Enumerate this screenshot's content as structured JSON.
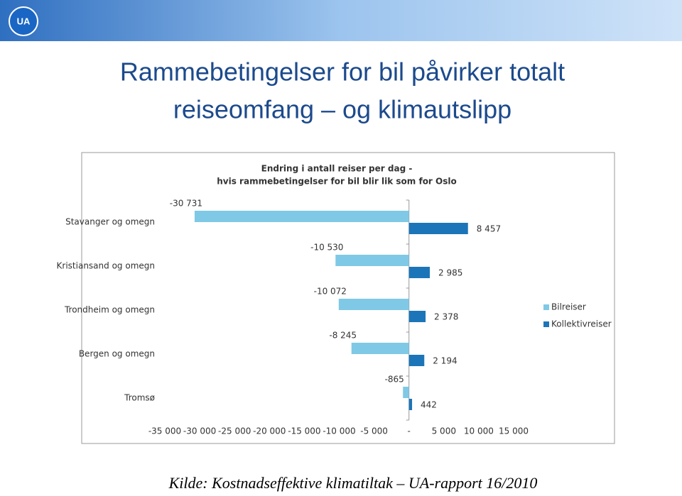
{
  "slide": {
    "logo": "UA",
    "title_lines": [
      "Rammebetingelser for bil påvirker totalt",
      "reiseomfang – og klimautslipp"
    ],
    "source": "Kilde: Kostnadseffektive klimatiltak – UA-rapport 16/2010"
  },
  "chart_data": {
    "type": "hbar",
    "title": [
      "Endring i antall reiser per dag -",
      "hvis rammebetingelser for bil blir lik som for Oslo"
    ],
    "categories": [
      "Stavanger og omegn",
      "Kristiansand og omegn",
      "Trondheim og omegn",
      "Bergen og omegn",
      "Tromsø"
    ],
    "series": [
      {
        "name": "Bilreiser",
        "color": "#7fc9e6",
        "values": [
          -30731,
          -10530,
          -10072,
          -8245,
          -865
        ],
        "value_labels": [
          "-30 731",
          "-10 530",
          "-10 072",
          "-8 245",
          "-865"
        ]
      },
      {
        "name": "Kollektivreiser",
        "color": "#1c75b8",
        "values": [
          8457,
          2985,
          2378,
          2194,
          442
        ],
        "value_labels": [
          "8 457",
          "2 985",
          "2 378",
          "2 194",
          "442"
        ]
      }
    ],
    "xlim": [
      -35000,
      15000
    ],
    "xticks": [
      {
        "value": -35000,
        "label": "-35 000"
      },
      {
        "value": -30000,
        "label": "-30 000"
      },
      {
        "value": -25000,
        "label": "-25 000"
      },
      {
        "value": -20000,
        "label": "-20 000"
      },
      {
        "value": -15000,
        "label": "-15 000"
      },
      {
        "value": -10000,
        "label": "-10 000"
      },
      {
        "value": -5000,
        "label": "-5 000"
      },
      {
        "value": 0,
        "label": "-"
      },
      {
        "value": 5000,
        "label": "5 000"
      },
      {
        "value": 10000,
        "label": "10 000"
      },
      {
        "value": 15000,
        "label": "15 000"
      }
    ],
    "legend": "right"
  }
}
